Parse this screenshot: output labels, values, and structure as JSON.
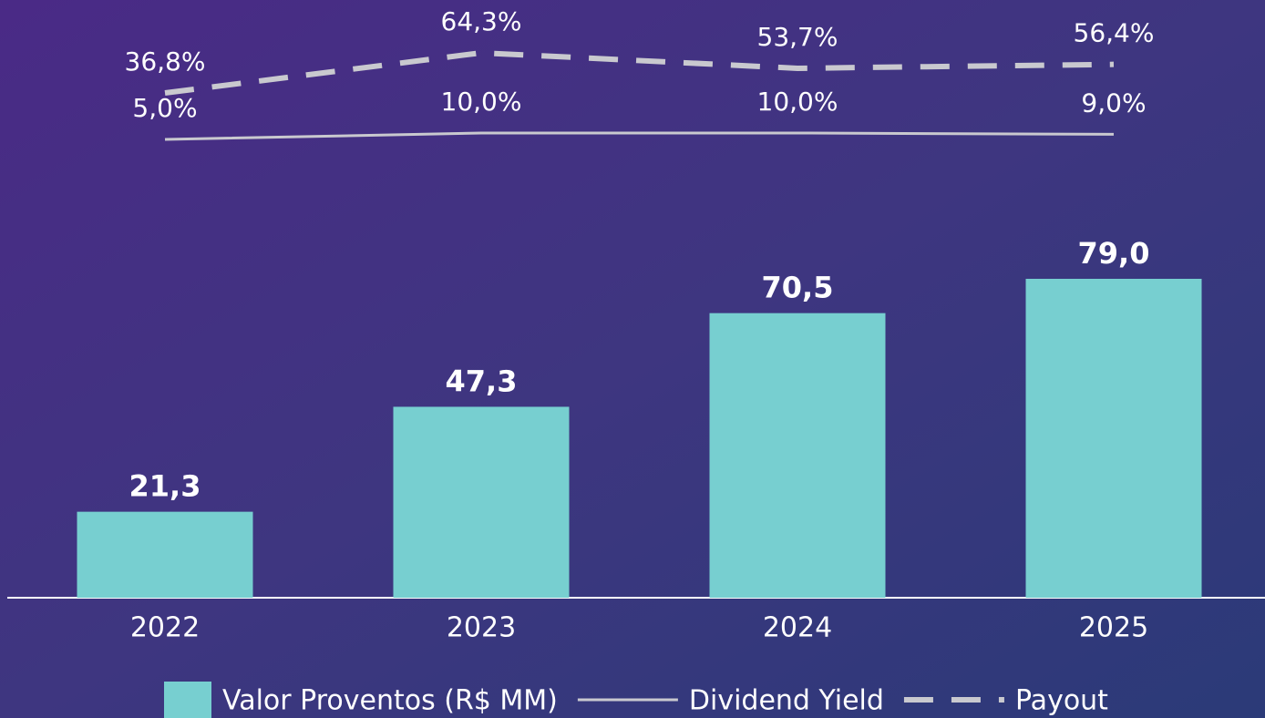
{
  "chart_data": {
    "type": "bar",
    "categories": [
      "2022",
      "2023",
      "2024",
      "2025"
    ],
    "series": [
      {
        "name": "Valor Proventos (R$ MM)",
        "type": "bar",
        "color": "#77cfd0",
        "values": [
          21.3,
          47.3,
          70.5,
          79.0
        ],
        "value_labels": [
          "21,3",
          "47,3",
          "70,5",
          "79,0"
        ]
      },
      {
        "name": "Dividend Yield",
        "type": "line",
        "color": "#c9c9cf",
        "values": [
          5.0,
          10.0,
          10.0,
          9.0
        ],
        "value_labels": [
          "5,0%",
          "10,0%",
          "10,0%",
          "9,0%"
        ]
      },
      {
        "name": "Payout",
        "type": "line",
        "dashed": true,
        "color": "#c9c9cf",
        "values": [
          36.8,
          64.3,
          53.7,
          56.4
        ],
        "value_labels": [
          "36,8%",
          "64,3%",
          "53,7%",
          "56,4%"
        ]
      }
    ]
  }
}
